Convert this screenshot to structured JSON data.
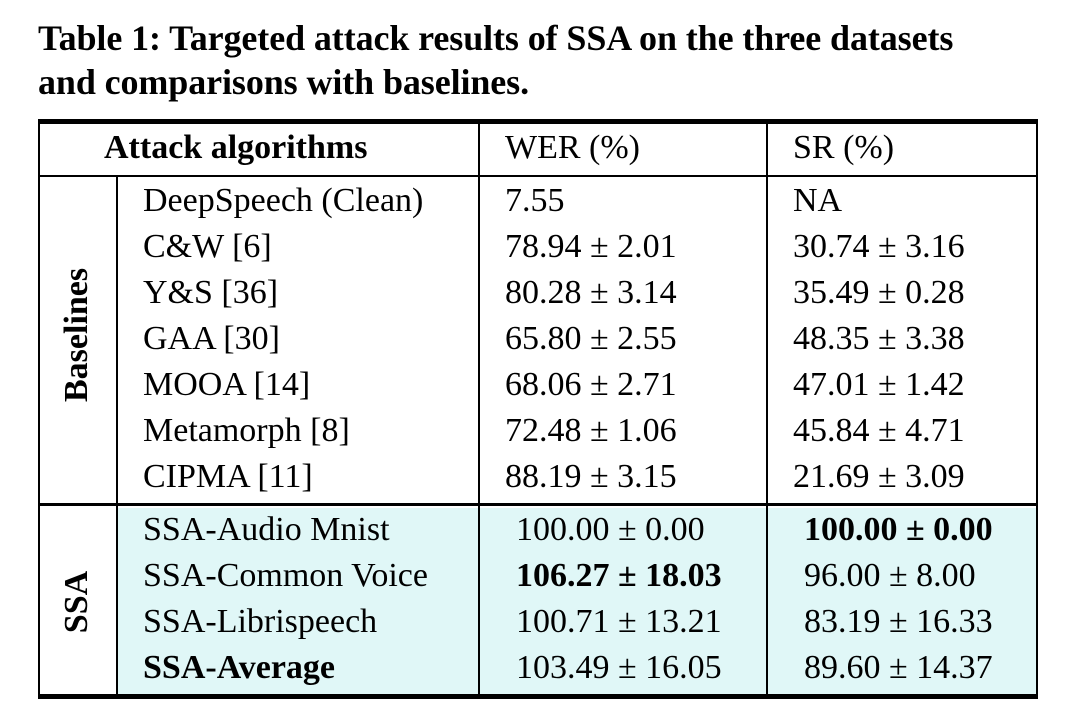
{
  "caption": {
    "line1": "Table 1: Targeted attack results of SSA on the three datasets",
    "line2": "and comparisons with baselines."
  },
  "table": {
    "headers": {
      "algorithms": "Attack algorithms",
      "wer": "WER (%)",
      "sr": "SR (%)"
    },
    "groups": {
      "baselines": "Baselines",
      "ssa": "SSA"
    },
    "baseline_rows": [
      {
        "name": "DeepSpeech (Clean)",
        "wer": "7.55",
        "sr": "NA"
      },
      {
        "name": "C&W [6]",
        "wer": "78.94 ± 2.01",
        "sr": "30.74 ± 3.16"
      },
      {
        "name": "Y&S [36]",
        "wer": "80.28 ± 3.14",
        "sr": "35.49 ± 0.28"
      },
      {
        "name": "GAA [30]",
        "wer": "65.80 ± 2.55",
        "sr": "48.35 ± 3.38"
      },
      {
        "name": "MOOA [14]",
        "wer": "68.06 ± 2.71",
        "sr": "47.01 ± 1.42"
      },
      {
        "name": "Metamorph [8]",
        "wer": "72.48 ± 1.06",
        "sr": "45.84 ± 4.71"
      },
      {
        "name": "CIPMA [11]",
        "wer": "88.19 ± 3.15",
        "sr": "21.69 ± 3.09"
      }
    ],
    "ssa_rows": [
      {
        "name": "SSA-Audio Mnist",
        "wer": "100.00 ± 0.00",
        "sr": "100.00 ± 0.00"
      },
      {
        "name": "SSA-Common Voice",
        "wer": "106.27 ± 18.03",
        "sr": "96.00 ± 8.00"
      },
      {
        "name": "SSA-Librispeech",
        "wer": "100.71 ± 13.21",
        "sr": "83.19 ± 16.33"
      },
      {
        "name": "SSA-Average",
        "wer": "103.49 ± 16.05",
        "sr": "89.60 ± 14.37"
      }
    ]
  },
  "colors": {
    "ssa_highlight": "#e0f7f7"
  }
}
